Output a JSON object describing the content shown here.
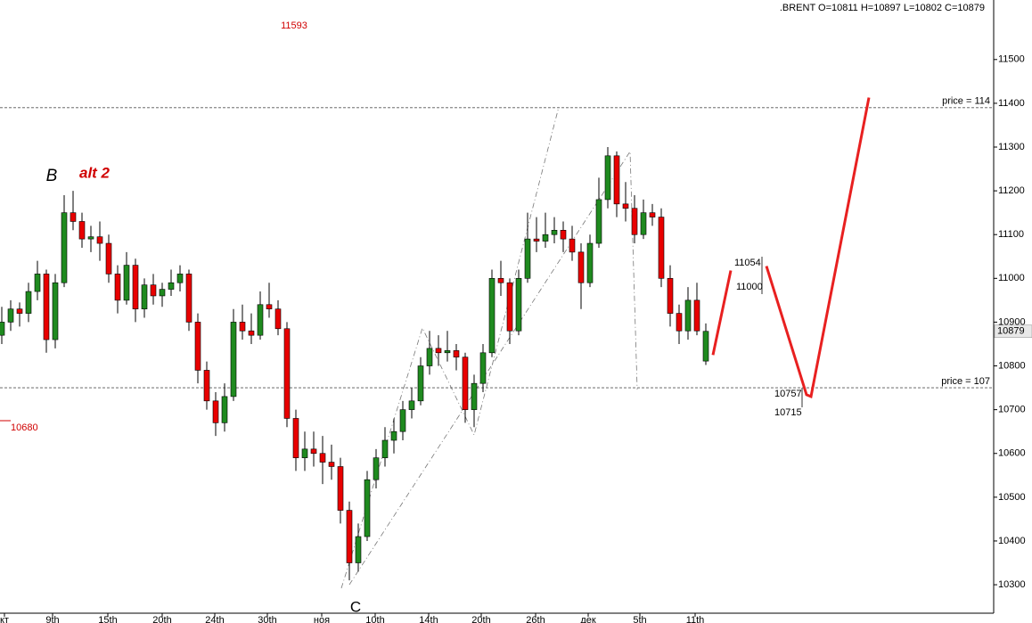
{
  "chart_data": {
    "type": "candlestick",
    "title": ".BRENT O=10811 H=10897 L=10802 C=10879",
    "open": [
      10870,
      10900,
      10930,
      10920,
      10970,
      11010,
      10860,
      10990,
      11150,
      11130,
      11090,
      11095,
      11080,
      11010,
      10950,
      11030,
      10930,
      10985,
      10960,
      10975,
      10990,
      11010,
      10900,
      10790,
      10720,
      10670,
      10730,
      10900,
      10880,
      10870,
      10940,
      10930,
      10885,
      10680,
      10590,
      10610,
      10600,
      10580,
      10570,
      10470,
      10350,
      10410,
      10540,
      10590,
      10630,
      10650,
      10700,
      10720,
      10800,
      10840,
      10830,
      10835,
      10820,
      10700,
      10760,
      10830,
      11000,
      10990,
      10880,
      11000,
      11090,
      11085,
      11100,
      11110,
      11090,
      11060,
      10990,
      11080,
      11180,
      11280,
      11170,
      11160,
      11100,
      11150,
      11140,
      11000,
      10920,
      10880,
      10950,
      10811
    ],
    "high": [
      10935,
      10950,
      10945,
      10990,
      11040,
      11020,
      11010,
      11190,
      11200,
      11150,
      11120,
      11130,
      11100,
      11030,
      11060,
      11045,
      11000,
      11010,
      10990,
      11020,
      11030,
      11020,
      10920,
      10810,
      10740,
      10760,
      10930,
      10940,
      10920,
      10970,
      10990,
      10950,
      10900,
      10700,
      10650,
      10650,
      10640,
      10620,
      10590,
      10490,
      10440,
      10560,
      10610,
      10660,
      10680,
      10720,
      10750,
      10820,
      10880,
      10870,
      10880,
      10850,
      10830,
      10780,
      10850,
      11020,
      11040,
      11000,
      11020,
      11150,
      11140,
      11150,
      11140,
      11130,
      11120,
      11080,
      11100,
      11230,
      11300,
      11290,
      11220,
      11190,
      11180,
      11170,
      11160,
      11030,
      10940,
      10980,
      10990,
      10897
    ],
    "low": [
      10850,
      10880,
      10890,
      10900,
      10950,
      10830,
      10840,
      10980,
      11110,
      11070,
      11060,
      11040,
      10990,
      10920,
      10940,
      10900,
      10910,
      10940,
      10935,
      10960,
      10970,
      10880,
      10760,
      10700,
      10640,
      10650,
      10720,
      10860,
      10850,
      10860,
      10910,
      10870,
      10660,
      10560,
      10560,
      10570,
      10530,
      10540,
      10440,
      10310,
      10330,
      10400,
      10520,
      10570,
      10600,
      10630,
      10680,
      10710,
      10780,
      10800,
      10810,
      10790,
      10670,
      10660,
      10740,
      10820,
      10960,
      10850,
      10870,
      10990,
      11060,
      11070,
      11080,
      11060,
      11040,
      10930,
      10980,
      11070,
      11160,
      11140,
      11130,
      11080,
      11090,
      11120,
      10980,
      10890,
      10850,
      10860,
      10870,
      10802
    ],
    "close": [
      10900,
      10930,
      10920,
      10970,
      11010,
      10860,
      10990,
      11150,
      11130,
      11090,
      11095,
      11080,
      11010,
      10950,
      11030,
      10930,
      10985,
      10960,
      10975,
      10990,
      11010,
      10900,
      10790,
      10720,
      10670,
      10730,
      10900,
      10880,
      10870,
      10940,
      10930,
      10885,
      10680,
      10590,
      10610,
      10600,
      10580,
      10570,
      10470,
      10350,
      10410,
      10540,
      10590,
      10630,
      10650,
      10700,
      10720,
      10800,
      10840,
      10830,
      10835,
      10820,
      10700,
      10760,
      10830,
      11000,
      10990,
      10880,
      11000,
      11090,
      11085,
      11100,
      11110,
      11090,
      11060,
      10990,
      11080,
      11180,
      11280,
      11170,
      11160,
      11100,
      11150,
      11140,
      11000,
      10920,
      10880,
      10950,
      10880,
      10879
    ],
    "up_color": "#1f8a1f",
    "down_color": "#e80000",
    "xlim": [
      -0.2,
      111.3
    ],
    "xticks": [
      {
        "value": 0.3,
        "label": "кт"
      },
      {
        "value": 5.7,
        "label": "9th"
      },
      {
        "value": 11.9,
        "label": "15th"
      },
      {
        "value": 18,
        "label": "20th"
      },
      {
        "value": 23.9,
        "label": "24th"
      },
      {
        "value": 29.8,
        "label": "30th"
      },
      {
        "value": 35.9,
        "label": "ноя"
      },
      {
        "value": 41.9,
        "label": "10th"
      },
      {
        "value": 47.9,
        "label": "14th"
      },
      {
        "value": 53.8,
        "label": "20th"
      },
      {
        "value": 59.9,
        "label": "26th"
      },
      {
        "value": 65.8,
        "label": "дек"
      },
      {
        "value": 71.6,
        "label": "5th"
      },
      {
        "value": 77.8,
        "label": "11th"
      }
    ],
    "ylim": [
      10237,
      11636
    ],
    "yticks": [
      10300,
      10400,
      10500,
      10600,
      10700,
      10800,
      10900,
      11000,
      11100,
      11200,
      11300,
      11400,
      11500
    ],
    "levels": [
      {
        "value": 11390,
        "label": "price = 114"
      },
      {
        "value": 10750,
        "label": "price = 107"
      }
    ],
    "forecast": {
      "color": "#e82020",
      "x": [
        79.8,
        81.8,
        null,
        85.8,
        90.3,
        90.8,
        97.3
      ],
      "values": [
        10825,
        11018,
        null,
        11028,
        10734,
        10730,
        11413
      ]
    },
    "annotations": [
      "B",
      "alt 2",
      "C",
      "11593",
      "10680",
      "11054",
      "11000",
      "10757",
      "10715"
    ]
  }
}
